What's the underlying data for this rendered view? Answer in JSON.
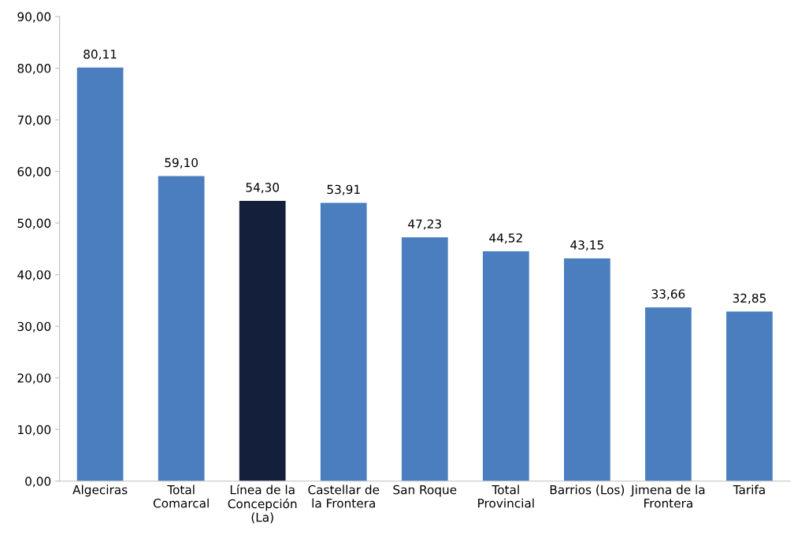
{
  "chart_data": {
    "type": "bar",
    "categories": [
      "Algeciras",
      "Total\nComarcal",
      "Línea de la\nConcepción\n(La)",
      "Castellar de\nla Frontera",
      "San Roque",
      "Total\nProvincial",
      "Barrios (Los)",
      "Jimena de la\nFrontera",
      "Tarifa"
    ],
    "values": [
      80.11,
      59.1,
      54.3,
      53.91,
      47.23,
      44.52,
      43.15,
      33.66,
      32.85
    ],
    "value_labels": [
      "80,11",
      "59,10",
      "54,30",
      "53,91",
      "47,23",
      "44,52",
      "43,15",
      "33,66",
      "32,85"
    ],
    "colors": [
      "#4a7ebf",
      "#4a7ebf",
      "#141f3c",
      "#4a7ebf",
      "#4a7ebf",
      "#4a7ebf",
      "#4a7ebf",
      "#4a7ebf",
      "#4a7ebf"
    ],
    "ylim": [
      0,
      90
    ],
    "yticks": [
      {
        "value": 0,
        "label": "0,00"
      },
      {
        "value": 10,
        "label": "10,00"
      },
      {
        "value": 20,
        "label": "20,00"
      },
      {
        "value": 30,
        "label": "30,00"
      },
      {
        "value": 40,
        "label": "40,00"
      },
      {
        "value": 50,
        "label": "50,00"
      },
      {
        "value": 60,
        "label": "60,00"
      },
      {
        "value": 70,
        "label": "70,00"
      },
      {
        "value": 80,
        "label": "80,00"
      },
      {
        "value": 90,
        "label": "90,00"
      }
    ],
    "grid": false,
    "legend": false
  }
}
